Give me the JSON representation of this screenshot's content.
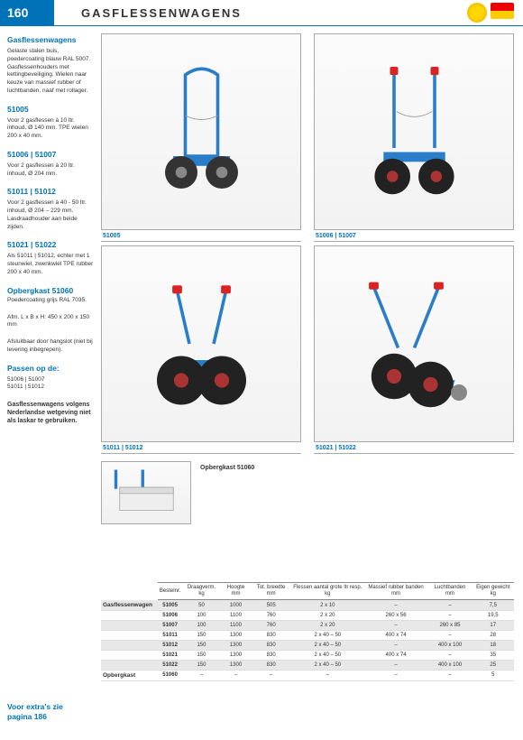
{
  "header": {
    "page_num": "160",
    "title": "GASFLESSENWAGENS"
  },
  "sidebar": {
    "s1_h": "Gasflessenwagens",
    "s1_p": "Gelaste stalen buis, poedercoating blauw RAL 5007. Gasflessenhouders met kettingbeveiliging. Wielen naar keuze van massief rubber of luchtbanden, naaf met rollager.",
    "s2_h": "51005",
    "s2_p": "Voor 2 gasflessen à 10 ltr. inhoud, Ø 140 mm. TPE wielen 200 x 40 mm.",
    "s3_h": "51006 | 51007",
    "s3_p": "Voor 2 gasflessen à 20 ltr. inhoud, Ø 204 mm.",
    "s4_h": "51011 | 51012",
    "s4_p": "Voor 2 gasflessen à 40 - 50 ltr. inhoud, Ø 204 – 229 mm. Lasdraadhouder aan beide zijden.",
    "s5_h": "51021 | 51022",
    "s5_p": "Als 51011 | 51012, echter met 1 steunwiel, zwenkwiel TPE rubber 200 x 40 mm.",
    "s6_h": "Opbergkast 51060",
    "s6_p": "Poedercoating grijs RAL 7035.",
    "s6_p2": "Afm. L x B x H: 450 x 200 x 150 mm",
    "s6_p3": "Afsluitbaar door hangslot (niet bij levering inbegrepen).",
    "s7_h": "Passen op de:",
    "s7_p": "51006 | 51007\n51011 | 51012",
    "s8_p": "Gasflessenwagens volgens Nederlandse wetgeving niet als laskar te gebruiken."
  },
  "products": {
    "p1": "51005",
    "p2": "51006 | 51007",
    "p3": "51011 | 51012",
    "p4": "51021 | 51022",
    "storage": "Opbergkast 51060"
  },
  "table": {
    "headers": [
      "Draagverm. kg",
      "Hoogte mm",
      "Tot. breedte mm",
      "Flessen aantal grote ltr resp. kg",
      "Massief rubber banden mm",
      "Luchtbanden mm",
      "Eigen gewicht kg"
    ],
    "bestel_h": "Bestelnr.",
    "group1": "Gasflessenwagen",
    "group2": "Opbergkast",
    "rows": [
      [
        "51005",
        "50",
        "1000",
        "505",
        "2 x 10",
        "–",
        "–",
        "7,5"
      ],
      [
        "51006",
        "100",
        "1100",
        "760",
        "2 x 20",
        "260 x 56",
        "–",
        "19,5"
      ],
      [
        "51007",
        "100",
        "1100",
        "760",
        "2 x 20",
        "–",
        "260 x 85",
        "17"
      ],
      [
        "51011",
        "150",
        "1300",
        "830",
        "2 x 40 – 50",
        "400 x 74",
        "–",
        "28"
      ],
      [
        "51012",
        "150",
        "1300",
        "830",
        "2 x 40 – 50",
        "–",
        "400 x 100",
        "18"
      ],
      [
        "51021",
        "150",
        "1300",
        "830",
        "2 x 40 – 50",
        "400 x 74",
        "–",
        "35"
      ],
      [
        "51022",
        "150",
        "1300",
        "830",
        "2 x 40 – 50",
        "–",
        "400 x 100",
        "25"
      ]
    ],
    "row_opberg": [
      "51060",
      "–",
      "–",
      "–",
      "–",
      "–",
      "–",
      "5"
    ]
  },
  "extras": {
    "l1": "Voor extra's zie",
    "l2": "pagina 186"
  },
  "colors": {
    "brand": "#0073b8",
    "cart_blue": "#2a7dc9",
    "wheel": "#222",
    "tire": "#333",
    "red": "#d22"
  }
}
